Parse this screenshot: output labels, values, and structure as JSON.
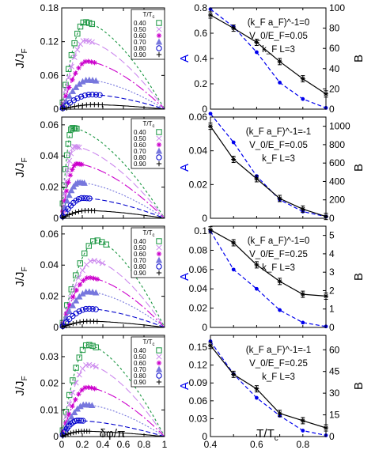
{
  "chart_data": [
    {
      "panel": "left-1",
      "type": "line-scatter",
      "xlabel": "",
      "ylabel": "J/J_F",
      "xlim": [
        0,
        1
      ],
      "ylim": [
        0,
        0.18
      ],
      "xticks": [
        0,
        0.2,
        0.4,
        0.6,
        0.8,
        1
      ],
      "yticks": [
        0,
        0.06,
        0.12,
        0.18
      ],
      "legend_title": "T/T_c",
      "legend": [
        "0.40",
        "0.50",
        "0.60",
        "0.70",
        "0.80",
        "0.90"
      ],
      "series": [
        {
          "name": "0.40",
          "peak_x": 0.22,
          "peak_y": 0.155
        },
        {
          "name": "0.50",
          "peak_x": 0.22,
          "peak_y": 0.122
        },
        {
          "name": "0.60",
          "peak_x": 0.24,
          "peak_y": 0.085
        },
        {
          "name": "0.70",
          "peak_x": 0.25,
          "peak_y": 0.052
        },
        {
          "name": "0.80",
          "peak_x": 0.28,
          "peak_y": 0.026
        },
        {
          "name": "0.90",
          "peak_x": 0.3,
          "peak_y": 0.008
        }
      ]
    },
    {
      "panel": "left-2",
      "type": "line-scatter",
      "xlabel": "",
      "ylabel": "J/J_F",
      "xlim": [
        0,
        1
      ],
      "ylim": [
        0,
        0.065
      ],
      "xticks": [
        0,
        0.2,
        0.4,
        0.6,
        0.8,
        1
      ],
      "yticks": [
        0,
        0.02,
        0.04,
        0.06
      ],
      "legend_title": "T/T_c",
      "legend": [
        "0.40",
        "0.50",
        "0.60",
        "0.70",
        "0.80",
        "0.90"
      ],
      "series": [
        {
          "name": "0.40",
          "peak_x": 0.1,
          "peak_y": 0.058
        },
        {
          "name": "0.50",
          "peak_x": 0.12,
          "peak_y": 0.046
        },
        {
          "name": "0.60",
          "peak_x": 0.14,
          "peak_y": 0.035
        },
        {
          "name": "0.70",
          "peak_x": 0.16,
          "peak_y": 0.023
        },
        {
          "name": "0.80",
          "peak_x": 0.2,
          "peak_y": 0.013
        },
        {
          "name": "0.90",
          "peak_x": 0.24,
          "peak_y": 0.005
        }
      ]
    },
    {
      "panel": "left-3",
      "type": "line-scatter",
      "xlabel": "",
      "ylabel": "J/J_F",
      "xlim": [
        0,
        1
      ],
      "ylim": [
        0,
        0.065
      ],
      "xticks": [
        0,
        0.2,
        0.4,
        0.6,
        0.8,
        1
      ],
      "yticks": [
        0,
        0.02,
        0.04,
        0.06
      ],
      "legend_title": "T/T_c",
      "legend": [
        "0.40",
        "0.50",
        "0.60",
        "0.70",
        "0.80",
        "0.90"
      ],
      "series": [
        {
          "name": "0.40",
          "peak_x": 0.33,
          "peak_y": 0.056
        },
        {
          "name": "0.50",
          "peak_x": 0.3,
          "peak_y": 0.043
        },
        {
          "name": "0.60",
          "peak_x": 0.26,
          "peak_y": 0.032
        },
        {
          "name": "0.70",
          "peak_x": 0.25,
          "peak_y": 0.023
        },
        {
          "name": "0.80",
          "peak_x": 0.25,
          "peak_y": 0.012
        },
        {
          "name": "0.90",
          "peak_x": 0.26,
          "peak_y": 0.004
        }
      ]
    },
    {
      "panel": "left-4",
      "type": "line-scatter",
      "xlabel": "δφ/π",
      "ylabel": "J/J_F",
      "xlim": [
        0,
        1
      ],
      "ylim": [
        0,
        0.038
      ],
      "xticks": [
        0,
        0.2,
        0.4,
        0.6,
        0.8,
        1
      ],
      "yticks": [
        0,
        0.01,
        0.02,
        0.03
      ],
      "legend_title": "T/T_c",
      "legend": [
        "0.40",
        "0.50",
        "0.60",
        "0.70",
        "0.80",
        "0.90"
      ],
      "series": [
        {
          "name": "0.40",
          "peak_x": 0.25,
          "peak_y": 0.0345
        },
        {
          "name": "0.50",
          "peak_x": 0.25,
          "peak_y": 0.027
        },
        {
          "name": "0.60",
          "peak_x": 0.24,
          "peak_y": 0.0185
        },
        {
          "name": "0.70",
          "peak_x": 0.22,
          "peak_y": 0.012
        },
        {
          "name": "0.80",
          "peak_x": 0.15,
          "peak_y": 0.006
        },
        {
          "name": "0.90",
          "peak_x": 0.2,
          "peak_y": 0.002
        }
      ]
    },
    {
      "panel": "right-1",
      "type": "line",
      "xlim": [
        0.4,
        0.9
      ],
      "xticks": [
        0.4,
        0.6,
        0.8
      ],
      "xlabel": "",
      "ylabel_left": "A",
      "ylabel_right": "B",
      "ylim_A": [
        0,
        0.8
      ],
      "yticks_A": [
        0,
        0.2,
        0.4,
        0.6,
        0.8
      ],
      "ylim_B": [
        0,
        100
      ],
      "yticks_B": [
        0,
        20,
        40,
        60,
        80,
        100
      ],
      "annotation": [
        "(k_F a_F)^-1=0",
        "V_0/E_F=0.05",
        "k_F L=3"
      ],
      "x": [
        0.4,
        0.5,
        0.6,
        0.7,
        0.8,
        0.9
      ],
      "A": [
        0.79,
        0.65,
        0.45,
        0.21,
        0.08,
        0.01
      ],
      "B": [
        93,
        80,
        66,
        47,
        30,
        15
      ]
    },
    {
      "panel": "right-2",
      "type": "line",
      "xlim": [
        0.4,
        0.9
      ],
      "xticks": [
        0.4,
        0.6,
        0.8
      ],
      "xlabel": "",
      "ylabel_left": "A",
      "ylabel_right": "B",
      "ylim_A": [
        0,
        0.06
      ],
      "yticks_A": [
        0,
        0.02,
        0.04,
        0.06
      ],
      "ylim_B": [
        0,
        1100
      ],
      "yticks_B": [
        0,
        200,
        400,
        600,
        800,
        1000
      ],
      "annotation": [
        "(k_F a_F)^-1=-1",
        "V_0/E_F=0.05",
        "k_F L=3"
      ],
      "x": [
        0.4,
        0.5,
        0.6,
        0.7,
        0.8,
        0.9
      ],
      "A": [
        0.062,
        0.045,
        0.025,
        0.011,
        0.004,
        0.001
      ],
      "B": [
        1000,
        640,
        430,
        215,
        100,
        20
      ]
    },
    {
      "panel": "right-3",
      "type": "line",
      "xlim": [
        0.4,
        0.9
      ],
      "xticks": [
        0.4,
        0.6,
        0.8
      ],
      "xlabel": "",
      "ylabel_left": "A",
      "ylabel_right": "B",
      "ylim_A": [
        0,
        0.105
      ],
      "yticks_A": [
        0,
        0.02,
        0.04,
        0.06,
        0.08,
        0.1
      ],
      "ylim_B": [
        0,
        5.5
      ],
      "yticks_B": [
        0,
        1,
        2,
        3,
        4,
        5
      ],
      "annotation": [
        "(k_F a_F)^-1=0",
        "V_0/E_F=0.25",
        "k_F L=3"
      ],
      "x": [
        0.4,
        0.5,
        0.6,
        0.7,
        0.8,
        0.9
      ],
      "A": [
        0.1,
        0.06,
        0.04,
        0.018,
        0.005,
        0.001
      ],
      "B": [
        5.3,
        4.6,
        3.4,
        2.5,
        1.8,
        1.7
      ]
    },
    {
      "panel": "right-4",
      "type": "line",
      "xlim": [
        0.4,
        0.9
      ],
      "xticks": [
        0.4,
        0.6,
        0.8
      ],
      "xlabel": "T/T_c",
      "ylabel_left": "A",
      "ylabel_right": "B",
      "ylim_A": [
        0,
        0.17
      ],
      "yticks_A": [
        0,
        0.03,
        0.06,
        0.09,
        0.12,
        0.15
      ],
      "ylim_B": [
        0,
        70
      ],
      "yticks_B": [
        0,
        15,
        30,
        45,
        60
      ],
      "annotation": [
        "(k_F a_F)^-1=-1",
        "V_0/E_F=0.25",
        "k_F L=3"
      ],
      "x": [
        0.4,
        0.5,
        0.6,
        0.7,
        0.8,
        0.9
      ],
      "A": [
        0.16,
        0.105,
        0.065,
        0.035,
        0.01,
        0.002
      ],
      "B": [
        63,
        43,
        33,
        16,
        11,
        6
      ]
    }
  ],
  "labels": {
    "left_ylabel_main": "J/J",
    "left_ylabel_sub": "F",
    "left_xlabel": "δφ/π",
    "right_ylabel_A": "A",
    "right_ylabel_B": "B",
    "right_xlabel_main": "T/T",
    "right_xlabel_sub": "c",
    "legend_title_main": "T/T",
    "legend_title_sub": "c"
  },
  "colors": {
    "s040": "#1a9641",
    "s050": "#cc88ee",
    "s060": "#cc00cc",
    "s070": "#7777dd",
    "s080": "#0000cc",
    "s090": "#000000",
    "A": "#0000ee",
    "B": "#000000"
  }
}
